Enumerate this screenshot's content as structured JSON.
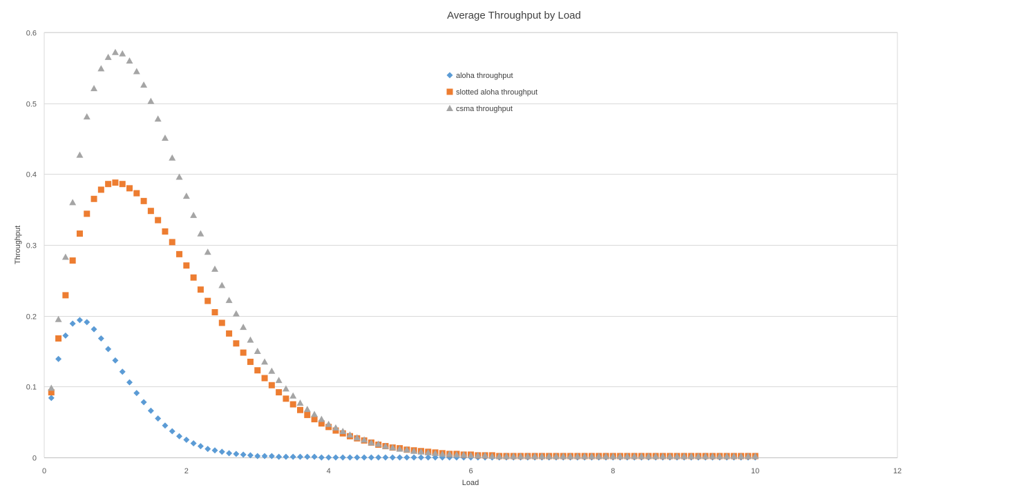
{
  "chart_data": {
    "type": "scatter",
    "title": "Average Throughput by Load",
    "xlabel": "Load",
    "ylabel": "Throughput",
    "xlim": [
      0,
      12
    ],
    "ylim": [
      0,
      0.6
    ],
    "xticks": [
      0,
      2,
      4,
      6,
      8,
      10,
      12
    ],
    "yticks": [
      0,
      0.1,
      0.2,
      0.3,
      0.4,
      0.5,
      0.6
    ],
    "grid": "horizontal",
    "legend": "top-center",
    "series": [
      {
        "name": "aloha throughput",
        "marker": "diamond",
        "color": "#5B9BD5",
        "x": [
          0.1,
          0.2,
          0.3,
          0.4,
          0.5,
          0.6,
          0.7,
          0.8,
          0.9,
          1,
          1.1,
          1.2,
          1.3,
          1.4,
          1.5,
          1.6,
          1.7,
          1.8,
          1.9,
          2,
          2.1,
          2.2,
          2.3,
          2.4,
          2.5,
          2.6,
          2.7,
          2.8,
          2.9,
          3,
          3.1,
          3.2,
          3.3,
          3.4,
          3.5,
          3.6,
          3.7,
          3.8,
          3.9,
          4,
          4.1,
          4.2,
          4.3,
          4.4,
          4.5,
          4.6,
          4.7,
          4.8,
          4.9,
          5,
          5.1,
          5.2,
          5.3,
          5.4,
          5.5,
          5.6,
          5.7,
          5.8,
          5.9,
          6,
          6.1,
          6.2,
          6.3,
          6.4,
          6.5,
          6.6,
          6.7,
          6.8,
          6.9,
          7,
          7.1,
          7.2,
          7.3,
          7.4,
          7.5,
          7.6,
          7.7,
          7.8,
          7.9,
          8,
          8.1,
          8.2,
          8.3,
          8.4,
          8.5,
          8.6,
          8.7,
          8.8,
          8.9,
          9,
          9.1,
          9.2,
          9.3,
          9.4,
          9.5,
          9.6,
          9.7,
          9.8,
          9.9,
          10
        ],
        "y": [
          0.084,
          0.139,
          0.172,
          0.189,
          0.194,
          0.191,
          0.181,
          0.168,
          0.153,
          0.137,
          0.121,
          0.106,
          0.091,
          0.078,
          0.066,
          0.055,
          0.045,
          0.037,
          0.03,
          0.025,
          0.02,
          0.016,
          0.012,
          0.01,
          0.008,
          0.006,
          0.005,
          0.004,
          0.003,
          0.002,
          0.002,
          0.002,
          0.001,
          0.001,
          0.001,
          0.001,
          0.001,
          0.001,
          0,
          0,
          0,
          0,
          0,
          0,
          0,
          0,
          0,
          0,
          0,
          0,
          0,
          0,
          0,
          0,
          0,
          0,
          0,
          0,
          0,
          0,
          0,
          0,
          0,
          0,
          0,
          0,
          0,
          0,
          0,
          0,
          0,
          0,
          0,
          0,
          0,
          0,
          0,
          0,
          0,
          0,
          0,
          0,
          0,
          0,
          0,
          0,
          0,
          0,
          0,
          0,
          0,
          0,
          0,
          0,
          0,
          0,
          0,
          0,
          0,
          0
        ]
      },
      {
        "name": "slotted aloha throughput",
        "marker": "square",
        "color": "#ED7D31",
        "x": [
          0.1,
          0.2,
          0.3,
          0.4,
          0.5,
          0.6,
          0.7,
          0.8,
          0.9,
          1,
          1.1,
          1.2,
          1.3,
          1.4,
          1.5,
          1.6,
          1.7,
          1.8,
          1.9,
          2,
          2.1,
          2.2,
          2.3,
          2.4,
          2.5,
          2.6,
          2.7,
          2.8,
          2.9,
          3,
          3.1,
          3.2,
          3.3,
          3.4,
          3.5,
          3.6,
          3.7,
          3.8,
          3.9,
          4,
          4.1,
          4.2,
          4.3,
          4.4,
          4.5,
          4.6,
          4.7,
          4.8,
          4.9,
          5,
          5.1,
          5.2,
          5.3,
          5.4,
          5.5,
          5.6,
          5.7,
          5.8,
          5.9,
          6,
          6.1,
          6.2,
          6.3,
          6.4,
          6.5,
          6.6,
          6.7,
          6.8,
          6.9,
          7,
          7.1,
          7.2,
          7.3,
          7.4,
          7.5,
          7.6,
          7.7,
          7.8,
          7.9,
          8,
          8.1,
          8.2,
          8.3,
          8.4,
          8.5,
          8.6,
          8.7,
          8.8,
          8.9,
          9,
          9.1,
          9.2,
          9.3,
          9.4,
          9.5,
          9.6,
          9.7,
          9.8,
          9.9,
          10
        ],
        "y": [
          0.092,
          0.168,
          0.229,
          0.278,
          0.316,
          0.344,
          0.365,
          0.378,
          0.386,
          0.388,
          0.386,
          0.38,
          0.373,
          0.362,
          0.348,
          0.335,
          0.319,
          0.304,
          0.287,
          0.271,
          0.254,
          0.237,
          0.221,
          0.205,
          0.19,
          0.175,
          0.161,
          0.148,
          0.135,
          0.123,
          0.112,
          0.102,
          0.092,
          0.083,
          0.075,
          0.067,
          0.06,
          0.054,
          0.048,
          0.043,
          0.038,
          0.034,
          0.03,
          0.027,
          0.024,
          0.021,
          0.018,
          0.016,
          0.014,
          0.013,
          0.011,
          0.01,
          0.009,
          0.008,
          0.007,
          0.006,
          0.005,
          0.005,
          0.004,
          0.004,
          0.003,
          0.003,
          0.003,
          0.002,
          0.002,
          0.002,
          0.002,
          0.002,
          0.002,
          0.002,
          0.002,
          0.002,
          0.002,
          0.002,
          0.002,
          0.002,
          0.002,
          0.002,
          0.002,
          0.002,
          0.002,
          0.002,
          0.002,
          0.002,
          0.002,
          0.002,
          0.002,
          0.002,
          0.002,
          0.002,
          0.002,
          0.002,
          0.002,
          0.002,
          0.002,
          0.002,
          0.002,
          0.002,
          0.002,
          0.002
        ]
      },
      {
        "name": "csma throughput",
        "marker": "triangle",
        "color": "#A5A5A5",
        "x": [
          0.1,
          0.2,
          0.3,
          0.4,
          0.5,
          0.6,
          0.7,
          0.8,
          0.9,
          1,
          1.1,
          1.2,
          1.3,
          1.4,
          1.5,
          1.6,
          1.7,
          1.8,
          1.9,
          2,
          2.1,
          2.2,
          2.3,
          2.4,
          2.5,
          2.6,
          2.7,
          2.8,
          2.9,
          3,
          3.1,
          3.2,
          3.3,
          3.4,
          3.5,
          3.6,
          3.7,
          3.8,
          3.9,
          4,
          4.1,
          4.2,
          4.3,
          4.4,
          4.5,
          4.6,
          4.7,
          4.8,
          4.9,
          5,
          5.1,
          5.2,
          5.3,
          5.4,
          5.5,
          5.6,
          5.7,
          5.8,
          5.9,
          6,
          6.1,
          6.2,
          6.3,
          6.4,
          6.5,
          6.6,
          6.7,
          6.8,
          6.9,
          7,
          7.1,
          7.2,
          7.3,
          7.4,
          7.5,
          7.6,
          7.7,
          7.8,
          7.9,
          8,
          8.1,
          8.2,
          8.3,
          8.4,
          8.5,
          8.6,
          8.7,
          8.8,
          8.9,
          9,
          9.1,
          9.2,
          9.3,
          9.4,
          9.5,
          9.6,
          9.7,
          9.8,
          9.9,
          10
        ],
        "y": [
          0.098,
          0.195,
          0.283,
          0.36,
          0.427,
          0.481,
          0.521,
          0.549,
          0.565,
          0.572,
          0.57,
          0.56,
          0.545,
          0.526,
          0.503,
          0.478,
          0.451,
          0.423,
          0.396,
          0.369,
          0.342,
          0.316,
          0.29,
          0.266,
          0.243,
          0.222,
          0.203,
          0.184,
          0.166,
          0.15,
          0.135,
          0.122,
          0.109,
          0.097,
          0.087,
          0.077,
          0.068,
          0.061,
          0.054,
          0.047,
          0.042,
          0.037,
          0.032,
          0.028,
          0.025,
          0.021,
          0.019,
          0.016,
          0.014,
          0.012,
          0.011,
          0.009,
          0.008,
          0.007,
          0.006,
          0.005,
          0.005,
          0.004,
          0.004,
          0.003,
          0.003,
          0.003,
          0.002,
          0.002,
          0.002,
          0.002,
          0.002,
          0.002,
          0.002,
          0.002,
          0.002,
          0.002,
          0.002,
          0.002,
          0.002,
          0.002,
          0.002,
          0.002,
          0.002,
          0.002,
          0.002,
          0.002,
          0.002,
          0.002,
          0.002,
          0.002,
          0.002,
          0.002,
          0.002,
          0.002,
          0.002,
          0.002,
          0.002,
          0.002,
          0.002,
          0.002,
          0.002,
          0.002,
          0.002,
          0.002
        ]
      }
    ]
  }
}
